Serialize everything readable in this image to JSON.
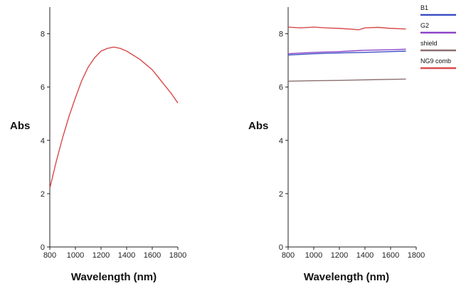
{
  "chart_data": [
    {
      "type": "line",
      "xlabel": "Wavelength (nm)",
      "ylabel": "Abs",
      "xlim": [
        800,
        1800
      ],
      "ylim": [
        0,
        9
      ],
      "xticks": [
        800,
        1000,
        1200,
        1400,
        1600,
        1800
      ],
      "yticks": [
        0,
        2,
        4,
        6,
        8
      ],
      "grid": false,
      "series": [
        {
          "color": "#d84a4a",
          "x": [
            800,
            850,
            900,
            950,
            1000,
            1050,
            1100,
            1150,
            1200,
            1250,
            1300,
            1350,
            1400,
            1450,
            1500,
            1550,
            1600,
            1650,
            1700,
            1750,
            1800
          ],
          "y": [
            2.2,
            3.2,
            4.1,
            4.9,
            5.6,
            6.25,
            6.75,
            7.1,
            7.35,
            7.45,
            7.5,
            7.45,
            7.35,
            7.2,
            7.05,
            6.85,
            6.65,
            6.35,
            6.05,
            5.75,
            5.4
          ]
        }
      ]
    },
    {
      "type": "line",
      "xlabel": "Wavelength (nm)",
      "ylabel": "Abs",
      "xlim": [
        800,
        1800
      ],
      "ylim": [
        0,
        9
      ],
      "xticks": [
        800,
        1000,
        1200,
        1400,
        1600,
        1800
      ],
      "yticks": [
        0,
        2,
        4,
        6,
        8
      ],
      "grid": false,
      "legend_position": "top-right",
      "series": [
        {
          "name": "B1",
          "color": "#3a4fc4",
          "x": [
            800,
            1000,
            1200,
            1400,
            1600,
            1720
          ],
          "y": [
            7.2,
            7.25,
            7.28,
            7.3,
            7.33,
            7.35
          ]
        },
        {
          "name": "G2",
          "color": "#8e44c7",
          "x": [
            800,
            1000,
            1200,
            1400,
            1600,
            1720
          ],
          "y": [
            7.25,
            7.3,
            7.33,
            7.38,
            7.4,
            7.42
          ]
        },
        {
          "name": "shield",
          "color": "#8a6f6f",
          "x": [
            800,
            1000,
            1200,
            1400,
            1600,
            1720
          ],
          "y": [
            6.22,
            6.24,
            6.25,
            6.27,
            6.29,
            6.3
          ]
        },
        {
          "name": "NG9 comb",
          "color": "#d84a4a",
          "x": [
            800,
            900,
            1000,
            1100,
            1200,
            1300,
            1350,
            1400,
            1500,
            1600,
            1720
          ],
          "y": [
            8.25,
            8.22,
            8.25,
            8.22,
            8.2,
            8.17,
            8.15,
            8.22,
            8.24,
            8.2,
            8.18
          ]
        }
      ]
    }
  ]
}
